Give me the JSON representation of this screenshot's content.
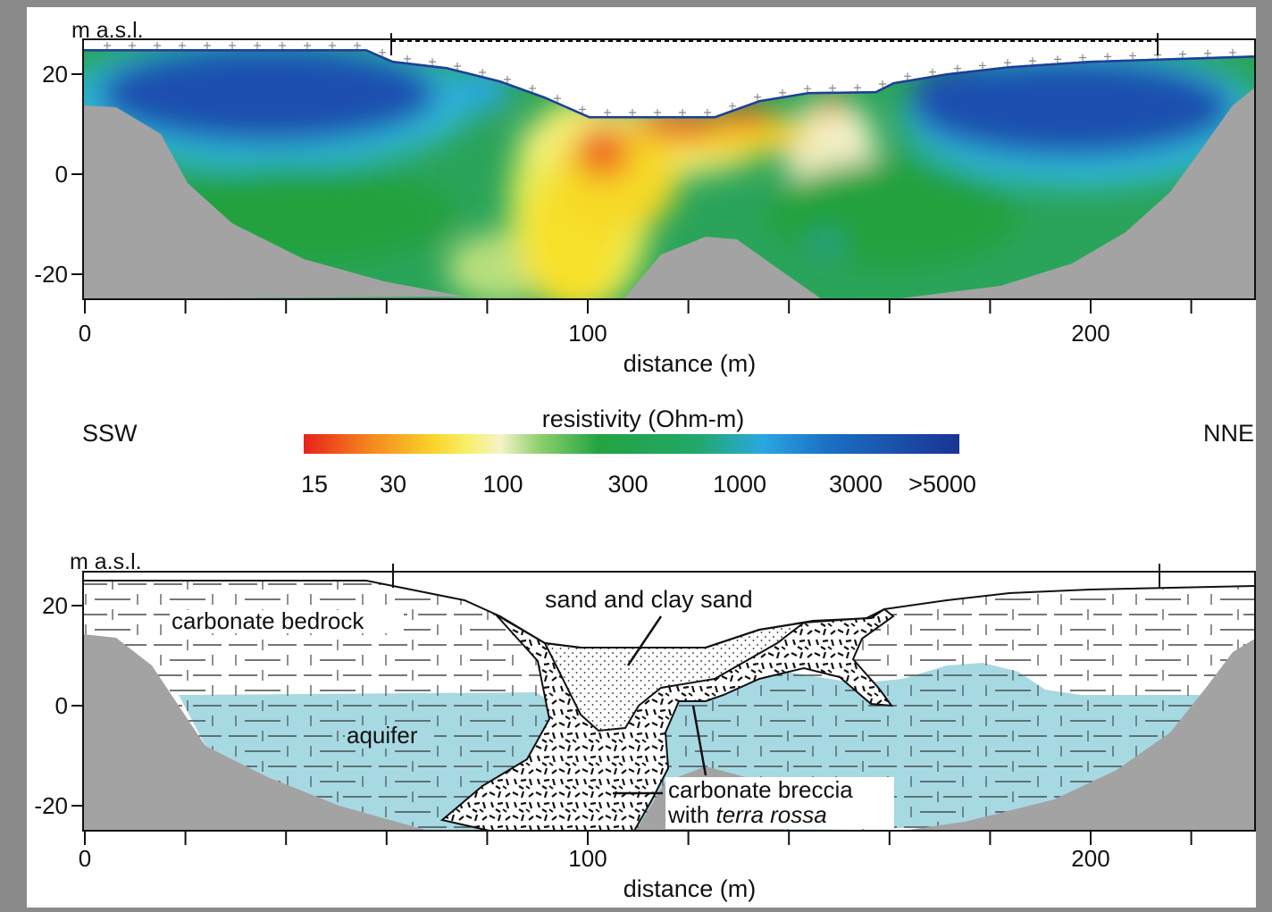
{
  "top_section": {
    "y_axis_title": "m a.s.l.",
    "y_ticks": [
      {
        "v": 20,
        "label": "20"
      },
      {
        "v": 0,
        "label": "0"
      },
      {
        "v": -20,
        "label": "-20"
      }
    ],
    "x_ticks": [
      {
        "v": 0,
        "label": "0"
      },
      {
        "v": 100,
        "label": "100"
      },
      {
        "v": 200,
        "label": "200"
      }
    ],
    "x_axis_title": "distance (m)"
  },
  "direction": {
    "left": "SSW",
    "right": "NNE"
  },
  "colorbar": {
    "title": "resistivity (Ohm-m)",
    "labels": [
      "15",
      "30",
      "100",
      "300",
      "1000",
      "3000",
      ">5000"
    ],
    "colors": [
      "#e8221c",
      "#f4861d",
      "#fbd52b",
      "#f7f06a",
      "#f5f3c8",
      "#5fbf55",
      "#23a341",
      "#1fa89a",
      "#2aa7e0",
      "#1b6fc4",
      "#1a3f9e",
      "#1a3493"
    ]
  },
  "bottom_section": {
    "y_axis_title": "m a.s.l.",
    "y_ticks": [
      {
        "v": 20,
        "label": "20"
      },
      {
        "v": 0,
        "label": "0"
      },
      {
        "v": -20,
        "label": "-20"
      }
    ],
    "x_ticks": [
      {
        "v": 0,
        "label": "0"
      },
      {
        "v": 100,
        "label": "100"
      },
      {
        "v": 200,
        "label": "200"
      }
    ],
    "x_axis_title": "distance (m)",
    "labels": {
      "bedrock": "carbonate bedrock",
      "sand": "sand and clay sand",
      "aquifer": "aquifer",
      "breccia_line1": "carbonate breccia",
      "breccia_line2_prefix": "with ",
      "breccia_line2_italic": "terra rossa"
    }
  }
}
